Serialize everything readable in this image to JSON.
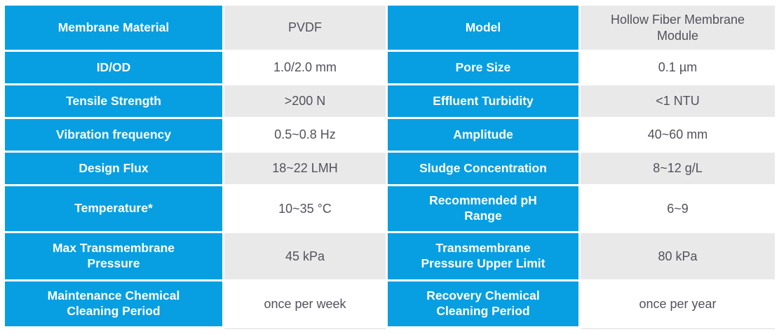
{
  "colors": {
    "label_blue": "#079fe2",
    "row_gray": "#e9e9e9",
    "row_white": "#ffffff",
    "label_text": "#ffffff",
    "value_text": "#52525c",
    "edge_line": "#dcdcdc"
  },
  "table": {
    "rows": [
      [
        "Membrane Material",
        "PVDF",
        "Model",
        "Hollow Fiber Membrane\nModule"
      ],
      [
        "ID/OD",
        "1.0/2.0 mm",
        "Pore Size",
        "0.1 µm"
      ],
      [
        "Tensile Strength",
        ">200 N",
        "Effluent Turbidity",
        "<1 NTU"
      ],
      [
        "Vibration frequency",
        "0.5~0.8 Hz",
        "Amplitude",
        "40~60 mm"
      ],
      [
        "Design Flux",
        "18~22 LMH",
        "Sludge Concentration",
        "8~12 g/L"
      ],
      [
        "Temperature*",
        "10~35 °C",
        "Recommended pH\nRange",
        "6~9"
      ],
      [
        "Max Transmembrane\nPressure",
        "45 kPa",
        "Transmembrane\nPressure Upper Limit",
        "80 kPa"
      ],
      [
        "Maintenance Chemical\nCleaning Period",
        "once per week",
        "Recovery Chemical\nCleaning Period",
        "once per year"
      ]
    ]
  }
}
